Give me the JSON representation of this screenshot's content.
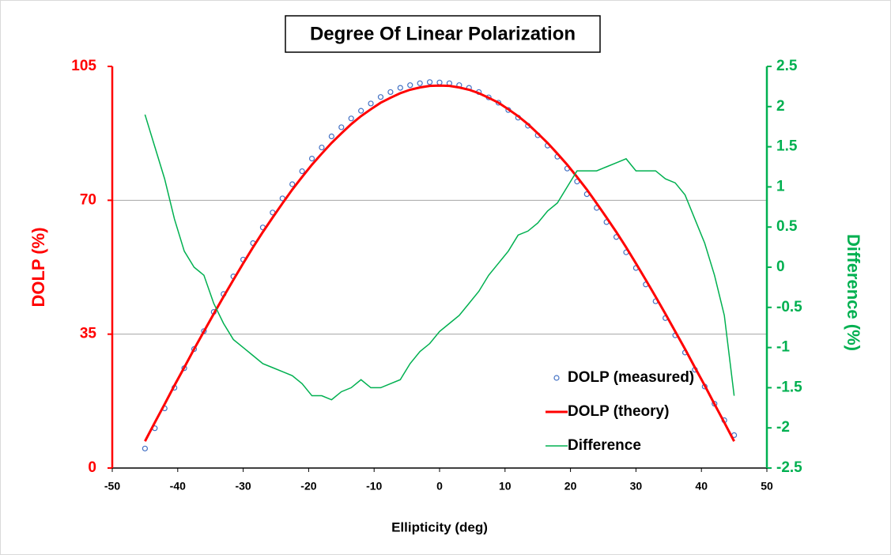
{
  "chart_data": {
    "type": "line",
    "title": "Degree Of Linear Polarization",
    "x_label": "Ellipticity (deg)",
    "y_label": "DOLP (%)",
    "y2_label": "Difference (%)",
    "x": [
      -45,
      -43.5,
      -42,
      -40.5,
      -39,
      -37.5,
      -36,
      -34.5,
      -33,
      -31.5,
      -30,
      -28.5,
      -27,
      -25.5,
      -24,
      -22.5,
      -21,
      -19.5,
      -18,
      -16.5,
      -15,
      -13.5,
      -12,
      -10.5,
      -9,
      -7.5,
      -6,
      -4.5,
      -3,
      -1.5,
      0,
      1.5,
      3,
      4.5,
      6,
      7.5,
      9,
      10.5,
      12,
      13.5,
      15,
      16.5,
      18,
      19.5,
      21,
      22.5,
      24,
      25.5,
      27,
      28.5,
      30,
      31.5,
      33,
      34.5,
      36,
      37.5,
      39,
      40.5,
      42,
      43.5,
      45
    ],
    "series": [
      {
        "name": "DOLP (measured)",
        "color": "#4472c4",
        "mode": "markers",
        "axis": "y",
        "values": [
          5.1,
          10.4,
          15.6,
          21.0,
          26.1,
          31.1,
          35.8,
          40.8,
          45.5,
          50.1,
          54.5,
          58.8,
          62.9,
          66.8,
          70.5,
          74.2,
          77.6,
          80.9,
          83.8,
          86.7,
          89.1,
          91.4,
          93.4,
          95.3,
          97.0,
          98.3,
          99.4,
          100.1,
          100.6,
          100.9,
          100.8,
          100.6,
          100.1,
          99.4,
          98.3,
          96.9,
          95.5,
          93.6,
          91.6,
          89.5,
          87.0,
          84.3,
          81.4,
          78.3,
          74.9,
          71.6,
          68.0,
          64.3,
          60.4,
          56.4,
          52.3,
          48.0,
          43.6,
          39.2,
          34.7,
          30.2,
          25.7,
          21.3,
          16.8,
          12.5,
          8.6
        ]
      },
      {
        "name": "DOLP (theory)",
        "color": "#ff0000",
        "mode": "line",
        "axis": "y",
        "values": [
          7.0,
          11.9,
          16.7,
          21.6,
          26.3,
          31.1,
          35.7,
          40.3,
          44.8,
          49.2,
          53.5,
          57.7,
          61.7,
          65.5,
          69.2,
          72.8,
          76.1,
          79.3,
          82.2,
          85.0,
          87.5,
          89.9,
          92.0,
          93.8,
          95.5,
          96.8,
          98.0,
          98.9,
          99.5,
          99.9,
          100.0,
          99.9,
          99.5,
          98.9,
          98.0,
          96.8,
          95.5,
          93.8,
          92.0,
          89.9,
          87.5,
          85.0,
          82.2,
          79.3,
          76.1,
          72.8,
          69.2,
          65.5,
          61.7,
          57.7,
          53.5,
          49.2,
          44.8,
          40.3,
          35.7,
          31.1,
          26.3,
          21.6,
          16.7,
          11.9,
          7.0
        ]
      },
      {
        "name": "Difference",
        "color": "#00b050",
        "mode": "line",
        "axis": "y2",
        "values": [
          1.9,
          1.5,
          1.1,
          0.6,
          0.2,
          0.0,
          -0.1,
          -0.45,
          -0.7,
          -0.9,
          -1.0,
          -1.1,
          -1.2,
          -1.25,
          -1.3,
          -1.35,
          -1.45,
          -1.6,
          -1.6,
          -1.65,
          -1.55,
          -1.5,
          -1.4,
          -1.5,
          -1.5,
          -1.45,
          -1.4,
          -1.2,
          -1.05,
          -0.95,
          -0.8,
          -0.7,
          -0.6,
          -0.45,
          -0.3,
          -0.1,
          0.05,
          0.2,
          0.4,
          0.45,
          0.55,
          0.7,
          0.8,
          1.0,
          1.2,
          1.2,
          1.2,
          1.25,
          1.3,
          1.35,
          1.2,
          1.2,
          1.2,
          1.1,
          1.05,
          0.9,
          0.6,
          0.3,
          -0.1,
          -0.6,
          -1.6
        ]
      }
    ],
    "xlim": [
      -50,
      50
    ],
    "xticks": [
      -50,
      -40,
      -30,
      -20,
      -10,
      0,
      10,
      20,
      30,
      40,
      50
    ],
    "ylim": [
      0,
      105
    ],
    "yticks": [
      0,
      35,
      70,
      105
    ],
    "y2lim": [
      -2.5,
      2.5
    ],
    "y2ticks": [
      -2.5,
      -2,
      -1.5,
      -1,
      -0.5,
      0,
      0.5,
      1,
      1.5,
      2,
      2.5
    ],
    "y_color": "#ff0000",
    "y2_color": "#00b050",
    "grid": true,
    "legend": "lower right"
  }
}
